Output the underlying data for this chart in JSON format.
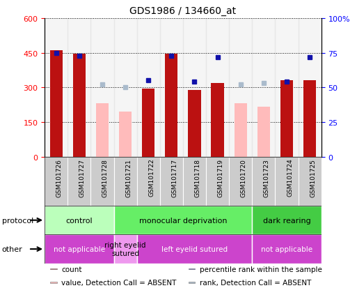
{
  "title": "GDS1986 / 134660_at",
  "samples": [
    "GSM101726",
    "GSM101727",
    "GSM101728",
    "GSM101721",
    "GSM101722",
    "GSM101717",
    "GSM101718",
    "GSM101719",
    "GSM101720",
    "GSM101723",
    "GSM101724",
    "GSM101725"
  ],
  "count_values": [
    460,
    445,
    null,
    null,
    295,
    445,
    290,
    320,
    null,
    null,
    330,
    330
  ],
  "absent_value_values": [
    null,
    null,
    230,
    195,
    null,
    null,
    null,
    null,
    230,
    215,
    null,
    null
  ],
  "percentile_values": [
    75,
    73,
    null,
    null,
    55,
    73,
    54,
    72,
    null,
    null,
    54,
    72
  ],
  "absent_rank_values": [
    null,
    null,
    52,
    50,
    null,
    null,
    null,
    null,
    52,
    53,
    null,
    null
  ],
  "ylim_left": [
    0,
    600
  ],
  "ylim_right": [
    0,
    100
  ],
  "yticks_left": [
    0,
    150,
    300,
    450,
    600
  ],
  "yticks_right": [
    0,
    25,
    50,
    75,
    100
  ],
  "yticklabels_right": [
    "0",
    "25",
    "50",
    "75",
    "100%"
  ],
  "bar_color_red": "#bb1111",
  "bar_color_pink": "#ffbbbb",
  "dot_color_blue": "#1111aa",
  "dot_color_lightblue": "#aabbcc",
  "protocol_groups": [
    {
      "label": "control",
      "start": 0,
      "end": 3,
      "color": "#bbffbb"
    },
    {
      "label": "monocular deprivation",
      "start": 3,
      "end": 9,
      "color": "#66ee66"
    },
    {
      "label": "dark rearing",
      "start": 9,
      "end": 12,
      "color": "#44cc44"
    }
  ],
  "other_groups": [
    {
      "label": "not applicable",
      "start": 0,
      "end": 3,
      "color": "#cc44cc"
    },
    {
      "label": "right eyelid\nsutured",
      "start": 3,
      "end": 4,
      "color": "#ee99ee"
    },
    {
      "label": "left eyelid sutured",
      "start": 4,
      "end": 9,
      "color": "#cc44cc"
    },
    {
      "label": "not applicable",
      "start": 9,
      "end": 12,
      "color": "#cc44cc"
    }
  ],
  "legend_items": [
    {
      "label": "count",
      "color": "#bb1111"
    },
    {
      "label": "percentile rank within the sample",
      "color": "#1111aa"
    },
    {
      "label": "value, Detection Call = ABSENT",
      "color": "#ffbbbb"
    },
    {
      "label": "rank, Detection Call = ABSENT",
      "color": "#aabbcc"
    }
  ]
}
